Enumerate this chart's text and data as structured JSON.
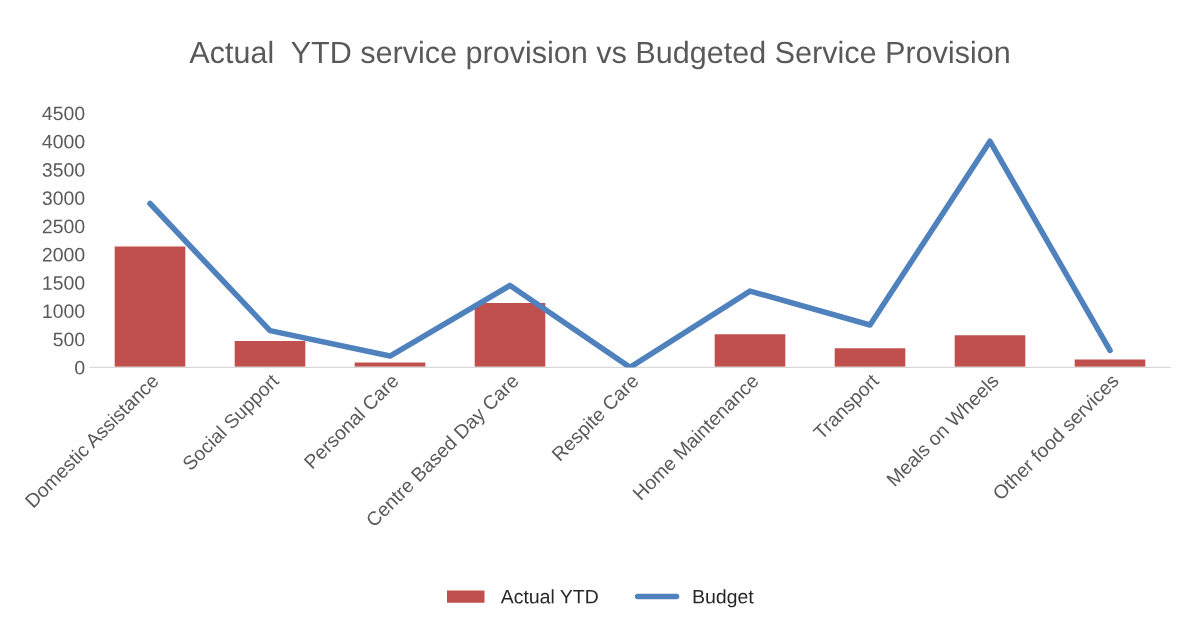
{
  "chart_data": {
    "type": "bar",
    "title": "Actual  YTD service provision vs Budgeted Service Provision",
    "categories": [
      "Domestic Assistance",
      "Social Support",
      "Personal Care",
      "Centre Based Day Care",
      "Respite Care",
      "Home Maintenance",
      "Transport",
      "Meals on Wheels",
      "Other food services"
    ],
    "series": [
      {
        "name": "Actual YTD",
        "color": "#c0504d",
        "values": [
          2150,
          480,
          100,
          1150,
          null,
          600,
          350,
          580,
          150
        ]
      },
      {
        "name": "Budget",
        "type": "line",
        "color": "#4f81bd",
        "values": [
          2900,
          650,
          200,
          1450,
          0,
          1350,
          750,
          4000,
          300
        ]
      }
    ],
    "ylim": [
      0,
      4500
    ],
    "yticks": [
      0,
      500,
      1000,
      1500,
      2000,
      2500,
      3000,
      3500,
      4000,
      4500
    ],
    "grid": false,
    "legend": "bottom",
    "marker": "none",
    "line_style": "solid"
  }
}
